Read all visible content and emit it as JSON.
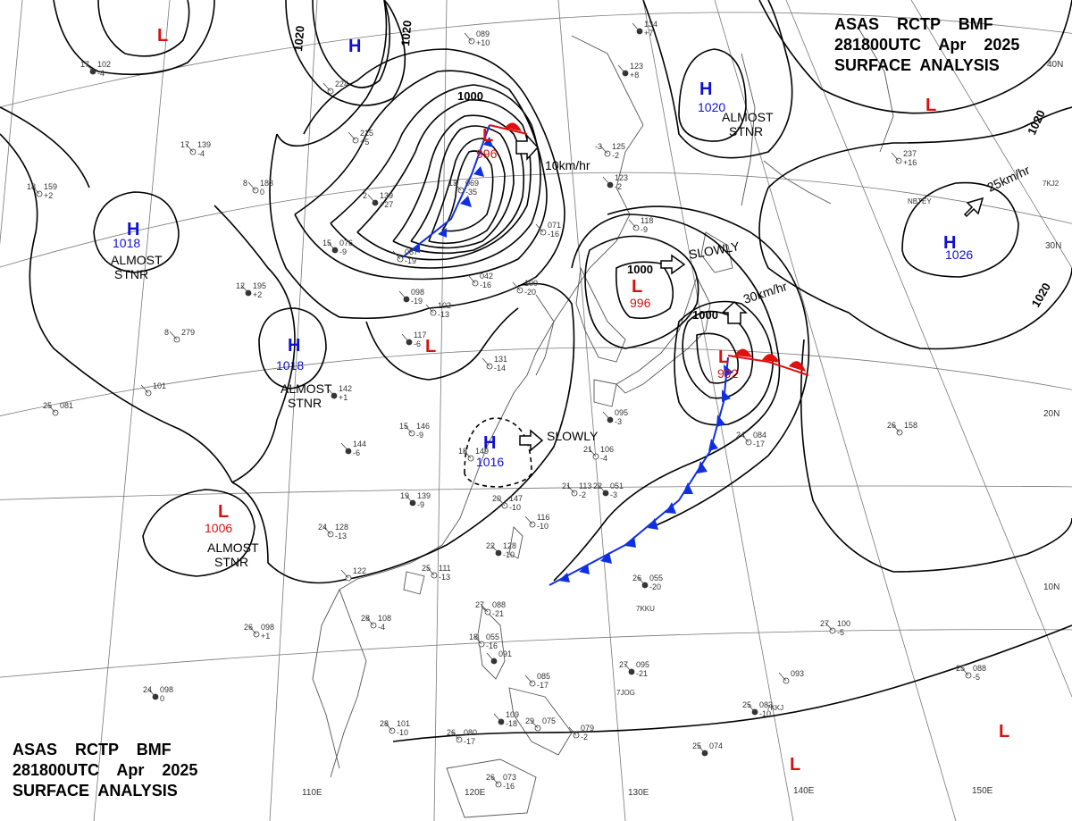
{
  "header": {
    "line1": "ASAS    RCTP    BMF",
    "line2": "281800UTC    Apr    2025",
    "line3": "SURFACE  ANALYSIS"
  },
  "colors": {
    "high": "#1010d0",
    "low": "#d81010",
    "cold_front": "#1030e0",
    "warm_front": "#e01010",
    "lines": "#000000"
  },
  "lon_labels": [
    "110E",
    "120E",
    "130E",
    "140E",
    "150E"
  ],
  "lat_labels": [
    "40N",
    "30N",
    "20N",
    "10N"
  ],
  "isobar_labels": [
    "1020",
    "1020",
    "1000",
    "1000",
    "1000",
    "1020",
    "1020"
  ],
  "centers": [
    {
      "type": "L",
      "value": ""
    },
    {
      "type": "H",
      "value": ""
    },
    {
      "type": "L",
      "value": "996"
    },
    {
      "type": "H",
      "value": "1020",
      "note": "ALMOST\nSTNR"
    },
    {
      "type": "L",
      "value": ""
    },
    {
      "type": "H",
      "value": "1018",
      "note": "ALMOST\nSTNR"
    },
    {
      "type": "H",
      "value": "1026"
    },
    {
      "type": "L",
      "value": "996"
    },
    {
      "type": "L",
      "value": "992"
    },
    {
      "type": "H",
      "value": "1018",
      "note": "ALMOST\nSTNR"
    },
    {
      "type": "L",
      "value": ""
    },
    {
      "type": "H",
      "value": "1016"
    },
    {
      "type": "L",
      "value": "1006",
      "note": "ALMOST\nSTNR"
    },
    {
      "type": "L",
      "value": ""
    },
    {
      "type": "L",
      "value": ""
    }
  ],
  "motions": [
    "10km/hr",
    "SLOWLY",
    "30km/hr",
    "25km/hr",
    "SLOWLY"
  ],
  "stations": [
    {
      "t": "17",
      "p": "102",
      "d": "-4"
    },
    {
      "t": "",
      "p": "089",
      "d": "+10"
    },
    {
      "t": "",
      "p": "224",
      "d": ""
    },
    {
      "t": "",
      "p": "134",
      "d": "+7"
    },
    {
      "t": "17",
      "p": "139",
      "d": "-4"
    },
    {
      "t": "",
      "p": "215",
      "d": "+5"
    },
    {
      "t": "",
      "p": "123",
      "d": "+8"
    },
    {
      "t": "18",
      "p": "159",
      "d": "+2"
    },
    {
      "t": "8",
      "p": "183",
      "d": "0"
    },
    {
      "t": "2",
      "p": "139",
      "d": "+27"
    },
    {
      "t": "13",
      "p": "069",
      "d": "-35"
    },
    {
      "t": "-3",
      "p": "125",
      "d": "-2"
    },
    {
      "t": "",
      "p": "123",
      "d": "-2"
    },
    {
      "t": "",
      "p": "118",
      "d": "-9"
    },
    {
      "t": "",
      "p": "237",
      "d": "+16"
    },
    {
      "t": "15",
      "p": "076",
      "d": "-9"
    },
    {
      "t": "",
      "p": "071",
      "d": "-16"
    },
    {
      "t": "",
      "p": "087",
      "d": "-19"
    },
    {
      "t": "12",
      "p": "195",
      "d": "+2"
    },
    {
      "t": "",
      "p": "042",
      "d": "-16"
    },
    {
      "t": "",
      "p": "100",
      "d": "-20"
    },
    {
      "t": "",
      "p": "098",
      "d": "-19"
    },
    {
      "t": "",
      "p": "102",
      "d": "-13"
    },
    {
      "t": "8",
      "p": "279",
      "d": ""
    },
    {
      "t": "",
      "p": "117",
      "d": "-6"
    },
    {
      "t": "",
      "p": "131",
      "d": "-14"
    },
    {
      "t": "",
      "p": "101",
      "d": ""
    },
    {
      "t": "",
      "p": "142",
      "d": "+1"
    },
    {
      "t": "25",
      "p": "081",
      "d": ""
    },
    {
      "t": "15",
      "p": "146",
      "d": "-9"
    },
    {
      "t": "",
      "p": "144",
      "d": "-6"
    },
    {
      "t": "18",
      "p": "149",
      "d": ""
    },
    {
      "t": "21",
      "p": "106",
      "d": "-4"
    },
    {
      "t": "",
      "p": "095",
      "d": "-3"
    },
    {
      "t": "24",
      "p": "084",
      "d": "-17"
    },
    {
      "t": "26",
      "p": "158",
      "d": ""
    },
    {
      "t": "19",
      "p": "139",
      "d": "-9"
    },
    {
      "t": "20",
      "p": "147",
      "d": "-10"
    },
    {
      "t": "21",
      "p": "113",
      "d": "-2"
    },
    {
      "t": "22",
      "p": "051",
      "d": "-3"
    },
    {
      "t": "",
      "p": "116",
      "d": "-10"
    },
    {
      "t": "24",
      "p": "128",
      "d": "-13"
    },
    {
      "t": "22",
      "p": "128",
      "d": "-10"
    },
    {
      "t": "25",
      "p": "111",
      "d": "-13"
    },
    {
      "t": "",
      "p": "122",
      "d": ""
    },
    {
      "t": "26",
      "p": "055",
      "d": "-20"
    },
    {
      "t": "27",
      "p": "088",
      "d": "-21"
    },
    {
      "t": "18",
      "p": "055",
      "d": "-16"
    },
    {
      "t": "",
      "p": "091",
      "d": ""
    },
    {
      "t": "28",
      "p": "108",
      "d": "-4"
    },
    {
      "t": "26",
      "p": "098",
      "d": "+1"
    },
    {
      "t": "27",
      "p": "095",
      "d": "-21"
    },
    {
      "t": "",
      "p": "085",
      "d": "-17"
    },
    {
      "t": "",
      "p": "093",
      "d": ""
    },
    {
      "t": "25",
      "p": "083",
      "d": "-10"
    },
    {
      "t": "27",
      "p": "100",
      "d": "-5"
    },
    {
      "t": "25",
      "p": "088",
      "d": "-5"
    },
    {
      "t": "24",
      "p": "098",
      "d": "0"
    },
    {
      "t": "28",
      "p": "101",
      "d": "-10"
    },
    {
      "t": "26",
      "p": "080",
      "d": "-17"
    },
    {
      "t": "",
      "p": "109",
      "d": "-18"
    },
    {
      "t": "29",
      "p": "075",
      "d": ""
    },
    {
      "t": "",
      "p": "079",
      "d": "-2"
    },
    {
      "t": "25",
      "p": "074",
      "d": ""
    },
    {
      "t": "26",
      "p": "073",
      "d": "-16"
    }
  ],
  "ship_ids": [
    "NBTEY",
    "7KJ2",
    "7JOG",
    "7KKU",
    "7KKJ"
  ]
}
